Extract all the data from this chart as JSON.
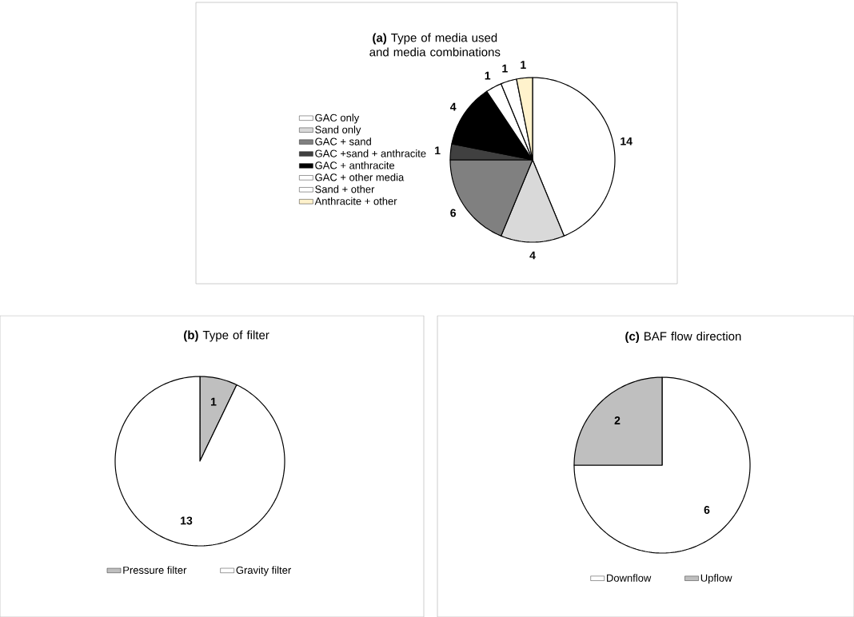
{
  "chart_data": [
    {
      "type": "pie",
      "title": "**(a)** Type of media used and media combinations",
      "categories": [
        "GAC only",
        "Sand only",
        "GAC + sand",
        "GAC +sand + anthracite",
        "GAC + anthracite",
        "GAC + other media",
        "Sand + other",
        "Anthracite + other"
      ],
      "values": [
        14,
        4,
        6,
        1,
        4,
        1,
        1,
        1
      ],
      "colors": [
        "#ffffff",
        "#d9d9d9",
        "#808080",
        "#404040",
        "#000000",
        "#ffffff",
        "#ffffff",
        "#fff2cc"
      ],
      "data_labels": true,
      "legend": "left"
    },
    {
      "type": "pie",
      "title": "**(b)** Type of filter",
      "categories": [
        "Pressure filter",
        "Gravity filter"
      ],
      "values": [
        1,
        13
      ],
      "colors": [
        "#bfbfbf",
        "#ffffff"
      ],
      "data_labels": true,
      "legend": "bottom"
    },
    {
      "type": "pie",
      "title": "**(c)** BAF flow direction",
      "categories": [
        "Downflow",
        "Upflow"
      ],
      "values": [
        6,
        2
      ],
      "colors": [
        "#ffffff",
        "#bfbfbf"
      ],
      "data_labels": true,
      "legend": "bottom"
    }
  ]
}
